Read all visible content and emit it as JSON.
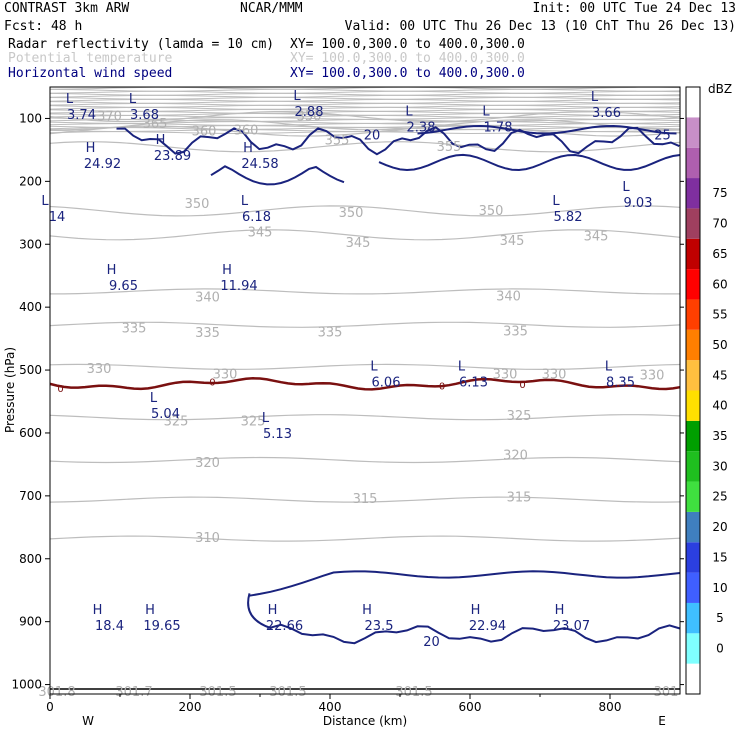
{
  "header": {
    "left1": "CONTRAST  3km ARW",
    "center1": "NCAR/MMM",
    "right1": "Init: 00 UTC Tue 24 Dec 13",
    "left2": "Fcst:     48 h",
    "right2": "Valid: 00 UTC Thu 26 Dec 13 (10 ChT Thu 26 Dec 13)",
    "fields": [
      {
        "name": "Radar reflectivity (lamda = 10 cm)",
        "xy": "XY= 100.0,300.0 to 400.0,300.0",
        "style": "black"
      },
      {
        "name": "Potential temperature",
        "xy": "XY= 100.0,300.0 to 400.0,300.0",
        "style": "gray"
      },
      {
        "name": "Horizontal wind speed",
        "xy": "XY= 100.0,300.0 to 400.0,300.0",
        "style": "navy"
      }
    ]
  },
  "chart_data": {
    "type": "line",
    "title": "",
    "xlabel": "Distance (km)",
    "ylabel": "Pressure (hPa)",
    "xlim": [
      0,
      900
    ],
    "ylim": [
      1015,
      50
    ],
    "xticks": [
      "0",
      "200",
      "400",
      "600",
      "800"
    ],
    "yticks": [
      "100",
      "200",
      "300",
      "400",
      "500",
      "600",
      "700",
      "800",
      "900",
      "1000"
    ],
    "x_ends": {
      "left": "W",
      "right": "E"
    },
    "colorbar": {
      "unit": "dBZ",
      "levels": [
        "0",
        "5",
        "10",
        "15",
        "20",
        "25",
        "30",
        "35",
        "40",
        "45",
        "50",
        "55",
        "60",
        "65",
        "70",
        "75"
      ],
      "colors": [
        "#ffffff",
        "#7fffff",
        "#3fbfff",
        "#3f5fff",
        "#2b3fdf",
        "#3f7fbf",
        "#3fdf3f",
        "#1fbf1f",
        "#009f00",
        "#ffdf00",
        "#ffbf3f",
        "#ff7f00",
        "#ff3f00",
        "#ff0000",
        "#c00000",
        "#9f3f5f",
        "#7f2f9f",
        "#af5faf",
        "#c88fc8",
        "#ffffff"
      ]
    },
    "theta_contours": [
      {
        "label": "370",
        "p": 97
      },
      {
        "label": "365",
        "p": 110
      },
      {
        "label": "360",
        "p": 120
      },
      {
        "label": "355",
        "p": 145
      },
      {
        "label": "350",
        "p": 247
      },
      {
        "label": "345",
        "p": 285
      },
      {
        "label": "340",
        "p": 375
      },
      {
        "label": "335",
        "p": 428
      },
      {
        "label": "330",
        "p": 495
      },
      {
        "label": "325",
        "p": 575
      },
      {
        "label": "320",
        "p": 643
      },
      {
        "label": "315",
        "p": 706
      },
      {
        "label": "310",
        "p": 768
      }
    ],
    "theta_labels": [
      {
        "text": "370",
        "x": 85,
        "p": 97
      },
      {
        "text": "365",
        "x": 150,
        "p": 109
      },
      {
        "text": "360",
        "x": 220,
        "p": 121
      },
      {
        "text": "360",
        "x": 280,
        "p": 119
      },
      {
        "text": "350",
        "x": 370,
        "p": 97
      },
      {
        "text": "355",
        "x": 410,
        "p": 135
      },
      {
        "text": "355",
        "x": 570,
        "p": 145
      },
      {
        "text": "350",
        "x": 210,
        "p": 236
      },
      {
        "text": "350",
        "x": 430,
        "p": 250
      },
      {
        "text": "350",
        "x": 630,
        "p": 247
      },
      {
        "text": "345",
        "x": 300,
        "p": 281
      },
      {
        "text": "345",
        "x": 440,
        "p": 298
      },
      {
        "text": "345",
        "x": 660,
        "p": 295
      },
      {
        "text": "345",
        "x": 780,
        "p": 288
      },
      {
        "text": "340",
        "x": 225,
        "p": 385
      },
      {
        "text": "340",
        "x": 655,
        "p": 383
      },
      {
        "text": "335",
        "x": 120,
        "p": 434
      },
      {
        "text": "335",
        "x": 225,
        "p": 441
      },
      {
        "text": "335",
        "x": 400,
        "p": 440
      },
      {
        "text": "335",
        "x": 665,
        "p": 439
      },
      {
        "text": "330",
        "x": 70,
        "p": 498
      },
      {
        "text": "330",
        "x": 250,
        "p": 507
      },
      {
        "text": "330",
        "x": 650,
        "p": 507
      },
      {
        "text": "330",
        "x": 720,
        "p": 507
      },
      {
        "text": "330",
        "x": 860,
        "p": 509
      },
      {
        "text": "325",
        "x": 180,
        "p": 582
      },
      {
        "text": "325",
        "x": 290,
        "p": 582
      },
      {
        "text": "325",
        "x": 670,
        "p": 573
      },
      {
        "text": "320",
        "x": 225,
        "p": 648
      },
      {
        "text": "320",
        "x": 665,
        "p": 636
      },
      {
        "text": "315",
        "x": 450,
        "p": 705
      },
      {
        "text": "315",
        "x": 670,
        "p": 703
      },
      {
        "text": "310",
        "x": 225,
        "p": 767
      },
      {
        "text": "301.8",
        "x": 10,
        "p": 1012
      },
      {
        "text": "301.7",
        "x": 120,
        "p": 1012
      },
      {
        "text": "301.5",
        "x": 240,
        "p": 1012
      },
      {
        "text": "301.5",
        "x": 340,
        "p": 1012
      },
      {
        "text": "301.5",
        "x": 520,
        "p": 1012
      },
      {
        "text": "301",
        "x": 880,
        "p": 1012
      }
    ],
    "wind_hl": [
      {
        "type": "L",
        "value": "3.74",
        "x": 45,
        "p": 85
      },
      {
        "type": "L",
        "value": "3.68",
        "x": 135,
        "p": 85
      },
      {
        "type": "L",
        "value": "2.88",
        "x": 370,
        "p": 80
      },
      {
        "type": "L",
        "value": "2.38",
        "x": 530,
        "p": 105
      },
      {
        "type": "L",
        "value": "1.78",
        "x": 640,
        "p": 105
      },
      {
        "type": "L",
        "value": "3.66",
        "x": 795,
        "p": 82
      },
      {
        "type": "H",
        "value": "24.92",
        "x": 75,
        "p": 163
      },
      {
        "type": "H",
        "value": "23.89",
        "x": 175,
        "p": 150
      },
      {
        "type": "H",
        "value": "24.58",
        "x": 300,
        "p": 163
      },
      {
        "type": "L",
        "value": "14",
        "x": 10,
        "p": 247
      },
      {
        "type": "L",
        "value": "6.18",
        "x": 295,
        "p": 247
      },
      {
        "type": "L",
        "value": "5.82",
        "x": 740,
        "p": 247
      },
      {
        "type": "L",
        "value": "9.03",
        "x": 840,
        "p": 225
      },
      {
        "type": "H",
        "value": "9.65",
        "x": 105,
        "p": 357
      },
      {
        "type": "H",
        "value": "11.94",
        "x": 270,
        "p": 357
      },
      {
        "type": "L",
        "value": "6.06",
        "x": 480,
        "p": 510
      },
      {
        "type": "L",
        "value": "6.13",
        "x": 605,
        "p": 510
      },
      {
        "type": "L",
        "value": "8.35",
        "x": 815,
        "p": 510
      },
      {
        "type": "L",
        "value": "5.04",
        "x": 165,
        "p": 560
      },
      {
        "type": "L",
        "value": "5.13",
        "x": 325,
        "p": 592
      },
      {
        "type": "H",
        "value": "18.4",
        "x": 85,
        "p": 897
      },
      {
        "type": "H",
        "value": "19.65",
        "x": 160,
        "p": 897
      },
      {
        "type": "H",
        "value": "22.66",
        "x": 335,
        "p": 897
      },
      {
        "type": "H",
        "value": "23.5",
        "x": 470,
        "p": 897
      },
      {
        "type": "H",
        "value": "22.94",
        "x": 625,
        "p": 897
      },
      {
        "type": "H",
        "value": "23.07",
        "x": 745,
        "p": 897
      }
    ],
    "wind_contours": [
      {
        "label": "20",
        "x": 460,
        "p": 127
      },
      {
        "label": "25",
        "x": 875,
        "p": 127
      },
      {
        "label": "20",
        "x": 545,
        "p": 932
      }
    ],
    "reflectivity_contours": [
      {
        "label": "0",
        "x": 15,
        "p": 530
      },
      {
        "label": "0",
        "x": 232,
        "p": 520
      },
      {
        "label": "0",
        "x": 560,
        "p": 526
      },
      {
        "label": "0",
        "x": 675,
        "p": 524
      }
    ]
  }
}
